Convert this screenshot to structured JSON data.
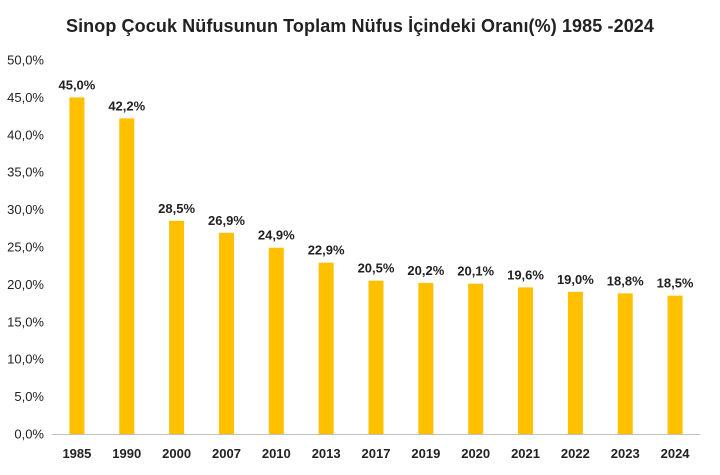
{
  "chart_data": {
    "type": "bar",
    "title": "Sinop Çocuk Nüfusunun Toplam Nüfus İçindeki Oranı(%) 1985 -2024",
    "xlabel": "",
    "ylabel": "",
    "categories": [
      "1985",
      "1990",
      "2000",
      "2007",
      "2010",
      "2013",
      "2017",
      "2019",
      "2020",
      "2021",
      "2022",
      "2023",
      "2024"
    ],
    "values": [
      45.0,
      42.2,
      28.5,
      26.9,
      24.9,
      22.9,
      20.5,
      20.2,
      20.1,
      19.6,
      19.0,
      18.8,
      18.5
    ],
    "data_labels": [
      "45,0%",
      "42,2%",
      "28,5%",
      "26,9%",
      "24,9%",
      "22,9%",
      "20,5%",
      "20,2%",
      "20,1%",
      "19,6%",
      "19,0%",
      "18,8%",
      "18,5%"
    ],
    "ylim": [
      0,
      50
    ],
    "y_ticks": [
      "0,0%",
      "5,0%",
      "10,0%",
      "15,0%",
      "20,0%",
      "25,0%",
      "30,0%",
      "35,0%",
      "40,0%",
      "45,0%",
      "50,0%"
    ],
    "grid": false,
    "legend": "none",
    "bar_color": "#FFC000",
    "axis_color": "#bfbfbf",
    "text_color": "#222222"
  }
}
